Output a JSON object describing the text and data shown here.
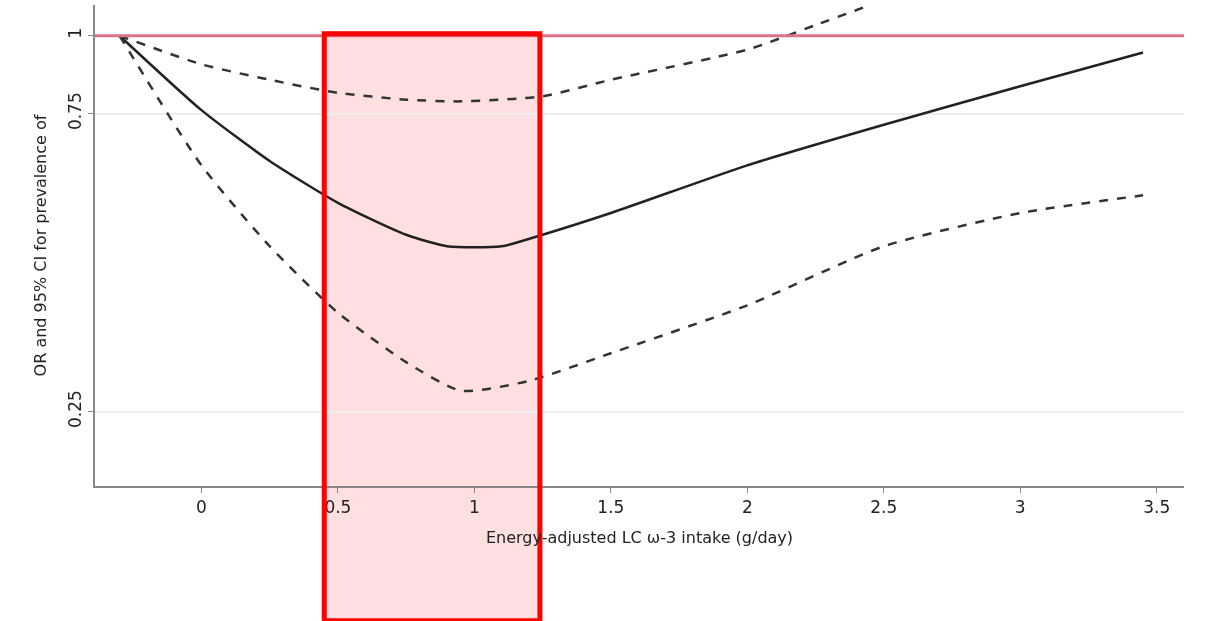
{
  "chart_data": {
    "type": "line",
    "xlabel": "Energy-adjusted LC ω-3 intake (g/day)",
    "ylabel": "OR and 95% CI for prevalence of",
    "log": "y",
    "xlim": [
      -0.39,
      3.6
    ],
    "xticks": [
      0,
      0.5,
      1,
      1.5,
      2,
      2.5,
      3,
      3.5
    ],
    "ylim": [
      0.19,
      1.12
    ],
    "yticks": [
      0.25,
      0.75,
      1
    ],
    "grid": "y",
    "series": [
      {
        "color": "#222222",
        "line_style": "solid",
        "x": [
          -0.3,
          0,
          0.25,
          0.5,
          0.75,
          0.9,
          1.1,
          1.25,
          1.5,
          2,
          2.5,
          3,
          3.45
        ],
        "values": [
          1,
          0.76,
          0.63,
          0.54,
          0.48,
          0.46,
          0.46,
          0.48,
          0.52,
          0.62,
          0.72,
          0.83,
          0.94
        ]
      },
      {
        "color": "#333333",
        "line_style": "dashed",
        "x": [
          -0.3,
          0,
          0.25,
          0.5,
          0.75,
          0.95,
          1.2,
          1.5,
          2,
          2.5,
          3,
          3.45
        ],
        "values": [
          1,
          0.62,
          0.46,
          0.36,
          0.3,
          0.27,
          0.28,
          0.31,
          0.37,
          0.46,
          0.52,
          0.555
        ]
      },
      {
        "color": "#333333",
        "line_style": "dashed",
        "x": [
          -0.3,
          0,
          0.25,
          0.5,
          0.75,
          0.95,
          1.25,
          1.5,
          2,
          2.25,
          2.45
        ],
        "values": [
          1,
          0.9,
          0.85,
          0.81,
          0.79,
          0.785,
          0.8,
          0.85,
          0.95,
          1.04,
          1.12
        ]
      }
    ],
    "ref_lines": [
      {
        "axis": "y",
        "value": 1,
        "color": "#e07088"
      }
    ],
    "bands": [
      {
        "axis": "x",
        "from": 0.45,
        "to": 1.24,
        "color": "#ff0000"
      }
    ]
  }
}
